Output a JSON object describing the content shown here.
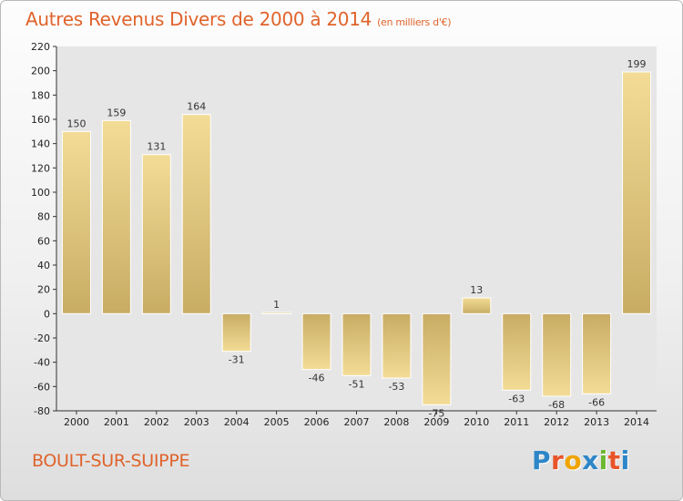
{
  "header": {
    "title": "Autres Revenus Divers de 2000 à 2014",
    "unit": "(en milliers d'€)"
  },
  "footer": {
    "city": "BOULT-SUR-SUIPPE",
    "logo": [
      "P",
      "r",
      "o",
      "x",
      "i",
      "t",
      "i"
    ],
    "logo_colors": [
      "#2e86c8",
      "#e8542a",
      "#f0a400",
      "#2e86c8",
      "#6bb830",
      "#e8542a",
      "#2e86c8"
    ]
  },
  "chart_data": {
    "type": "bar",
    "title": "Autres Revenus Divers de 2000 à 2014",
    "categories": [
      "2000",
      "2001",
      "2002",
      "2003",
      "2004",
      "2005",
      "2006",
      "2007",
      "2008",
      "2009",
      "2010",
      "2011",
      "2012",
      "2013",
      "2014"
    ],
    "values": [
      150,
      159,
      131,
      164,
      -31,
      1,
      -46,
      -51,
      -53,
      -75,
      13,
      -63,
      -68,
      -66,
      199
    ],
    "ylim": [
      -80,
      220
    ],
    "yticks": [
      -80,
      -60,
      -40,
      -20,
      0,
      20,
      40,
      60,
      80,
      100,
      120,
      140,
      160,
      180,
      200,
      220
    ],
    "grid": false,
    "bar_color_light": "#f3dc96",
    "bar_color_dark": "#c8ac64"
  }
}
